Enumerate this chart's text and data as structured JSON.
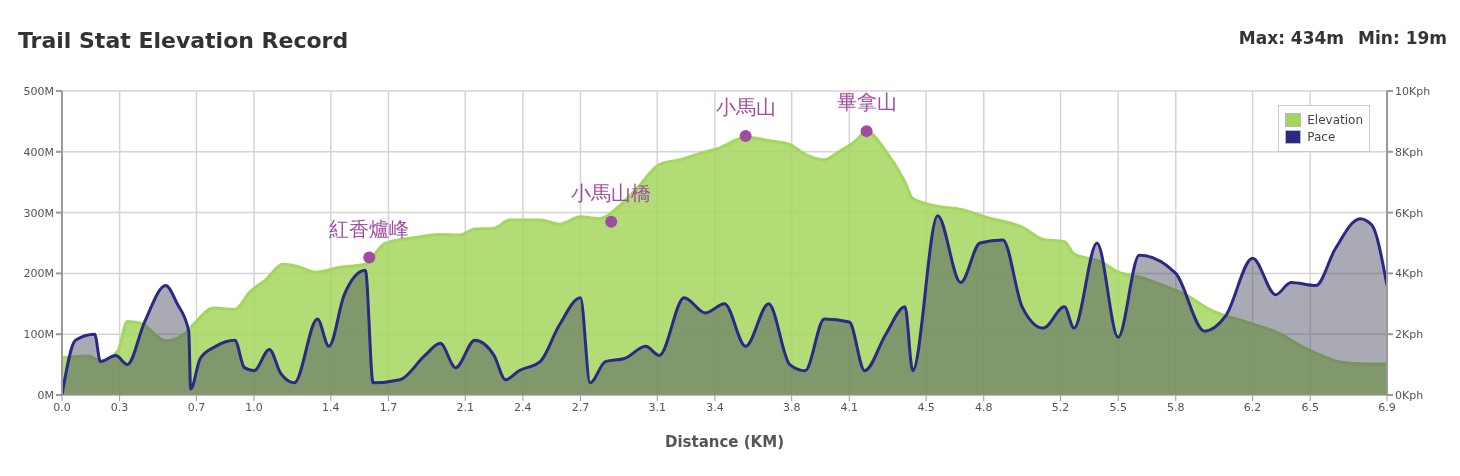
{
  "chart_data": {
    "type": "area",
    "title": "Trail Stat Elevation Record",
    "xlabel": "Distance (KM)",
    "annotations": [
      "Max: 434m",
      "Min: 19m",
      {
        "text": "紅香爐峰",
        "x": 1.6,
        "y": 226
      },
      {
        "text": "小馬山橋",
        "x": 2.86,
        "y": 285
      },
      {
        "text": "小馬山",
        "x": 3.56,
        "y": 426
      },
      {
        "text": "畢拿山",
        "x": 4.19,
        "y": 434
      }
    ],
    "xlim": [
      0,
      6.9
    ],
    "xticks": [
      {
        "value": 0,
        "label": "0.0"
      },
      0.3,
      0.7,
      {
        "value": 1,
        "label": "1.0"
      },
      1.4,
      1.7,
      2.1,
      2.4,
      2.7,
      3.1,
      3.4,
      3.8,
      4.1,
      4.5,
      4.8,
      5.2,
      5.5,
      5.8,
      6.2,
      6.5,
      6.9
    ],
    "ylim": [
      0,
      500
    ],
    "yticks": [
      {
        "value": 0,
        "label": "0M"
      },
      {
        "value": 100,
        "label": "100M"
      },
      {
        "value": 200,
        "label": "200M"
      },
      {
        "value": 300,
        "label": "300M"
      },
      {
        "value": 400,
        "label": "400M"
      },
      {
        "value": 500,
        "label": "500M"
      }
    ],
    "y2lim": [
      0,
      10
    ],
    "y2ticks": [
      {
        "value": 0,
        "label": "0Kph"
      },
      {
        "value": 2,
        "label": "2Kph"
      },
      {
        "value": 4,
        "label": "4Kph"
      },
      {
        "value": 6,
        "label": "6Kph"
      },
      {
        "value": 8,
        "label": "8Kph"
      },
      {
        "value": 10,
        "label": "10Kph"
      }
    ],
    "grid": true,
    "legend": "top right",
    "series": [
      {
        "name": "Elevation",
        "color": "#a4d65e",
        "x": [
          0,
          0.14,
          0.2,
          0.29,
          0.34,
          0.41,
          0.54,
          0.64,
          0.69,
          0.79,
          0.9,
          0.98,
          1.06,
          1.15,
          1.22,
          1.32,
          1.45,
          1.58,
          1.68,
          1.84,
          1.97,
          2.07,
          2.15,
          2.25,
          2.33,
          2.49,
          2.59,
          2.7,
          2.8,
          2.9,
          3.0,
          3.11,
          3.22,
          3.32,
          3.43,
          3.56,
          3.69,
          3.79,
          3.87,
          3.97,
          4.05,
          4.13,
          4.19,
          4.29,
          4.39,
          4.43,
          4.55,
          4.68,
          4.83,
          5.0,
          5.11,
          5.22,
          5.27,
          5.41,
          5.5,
          5.61,
          5.72,
          5.85,
          5.98,
          6.19,
          6.34,
          6.45,
          6.55,
          6.66,
          6.79,
          6.9
        ],
        "values": [
          61,
          64,
          56,
          72,
          121,
          118,
          89,
          101,
          118,
          143,
          141,
          170,
          189,
          215,
          212,
          202,
          210,
          215,
          249,
          259,
          264,
          263,
          273,
          274,
          288,
          288,
          281,
          293,
          290,
          310,
          342,
          379,
          387,
          397,
          407,
          424,
          418,
          412,
          396,
          387,
          401,
          417,
          434,
          401,
          350,
          323,
          311,
          305,
          291,
          276,
          256,
          252,
          232,
          219,
          202,
          194,
          182,
          165,
          140,
          118,
          101,
          81,
          66,
          54,
          51,
          51
        ]
      },
      {
        "name": "Pace",
        "color": "#2a2a86",
        "axis": "y2",
        "x": [
          0,
          0.07,
          0.17,
          0.2,
          0.28,
          0.34,
          0.43,
          0.54,
          0.6,
          0.66,
          0.67,
          0.72,
          0.8,
          0.9,
          0.95,
          1.0,
          1.08,
          1.14,
          1.21,
          1.33,
          1.39,
          1.47,
          1.58,
          1.62,
          1.76,
          1.89,
          1.97,
          2.05,
          2.15,
          2.25,
          2.31,
          2.38,
          2.49,
          2.59,
          2.7,
          2.75,
          2.83,
          2.93,
          3.04,
          3.11,
          3.24,
          3.35,
          3.45,
          3.56,
          3.68,
          3.79,
          3.87,
          3.97,
          4.1,
          4.18,
          4.29,
          4.39,
          4.43,
          4.56,
          4.68,
          4.78,
          4.9,
          5.0,
          5.11,
          5.22,
          5.27,
          5.39,
          5.5,
          5.61,
          5.8,
          5.95,
          6.06,
          6.2,
          6.32,
          6.4,
          6.53,
          6.63,
          6.76,
          6.82,
          6.9
        ],
        "values": [
          0,
          1.8,
          2.0,
          1.1,
          1.3,
          1.0,
          2.4,
          3.6,
          3.0,
          2.1,
          0.2,
          1.2,
          1.6,
          1.8,
          0.9,
          0.8,
          1.5,
          0.7,
          0.4,
          2.5,
          1.6,
          3.3,
          4.1,
          0.4,
          0.5,
          1.3,
          1.7,
          0.9,
          1.8,
          1.3,
          0.5,
          0.8,
          1.1,
          2.3,
          3.2,
          0.4,
          1.1,
          1.2,
          1.6,
          1.3,
          3.2,
          2.7,
          3.0,
          1.6,
          3.0,
          1.0,
          0.8,
          2.5,
          2.4,
          0.8,
          2.0,
          2.9,
          0.8,
          5.9,
          3.7,
          5.0,
          5.1,
          2.9,
          2.2,
          2.9,
          2.2,
          5.0,
          1.9,
          4.6,
          4.0,
          2.1,
          2.6,
          4.5,
          3.3,
          3.7,
          3.6,
          4.8,
          5.8,
          5.6,
          3.6
        ]
      }
    ]
  }
}
